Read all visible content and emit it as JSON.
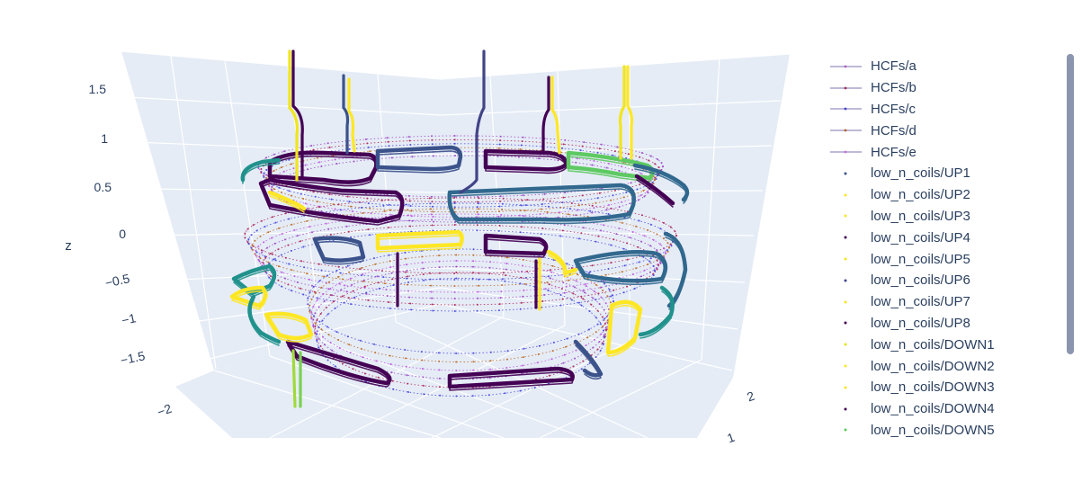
{
  "chart_data": {
    "type": "scatter3d",
    "axes": {
      "z": {
        "title": "z",
        "ticks": [
          1.5,
          1,
          0.5,
          0,
          -0.5,
          -1,
          -1.5
        ],
        "tick_labels": [
          "1.5",
          "1",
          "0.5",
          "0",
          "−0.5",
          "−1",
          "−1.5"
        ]
      },
      "x": {
        "tick_labels": [
          "−2"
        ]
      },
      "y": {
        "tick_labels": [
          "2",
          "1"
        ]
      }
    },
    "grid": true,
    "legend_placement": "right",
    "colors": {
      "scene_bg": "#e5ecf6",
      "grid": "#ffffff",
      "text": "#2a3f5f",
      "hcf_a": "#a050c8",
      "hcf_b": "#b03060",
      "hcf_c": "#5050e0",
      "hcf_d": "#c07030",
      "hcf_e": "#c060e0"
    },
    "series": [
      {
        "name": "HCFs/a",
        "mode": "lines+markers",
        "color": "#b060c0"
      },
      {
        "name": "HCFs/b",
        "mode": "lines+markers",
        "color": "#a03050"
      },
      {
        "name": "HCFs/c",
        "mode": "lines+markers",
        "color": "#4040d0"
      },
      {
        "name": "HCFs/d",
        "mode": "lines+markers",
        "color": "#b06020"
      },
      {
        "name": "HCFs/e",
        "mode": "lines+markers",
        "color": "#c070d0"
      },
      {
        "name": "low_n_coils/UP1",
        "mode": "markers",
        "color": "#3b528b"
      },
      {
        "name": "low_n_coils/UP2",
        "mode": "markers",
        "color": "#fde725"
      },
      {
        "name": "low_n_coils/UP3",
        "mode": "markers",
        "color": "#f2e626"
      },
      {
        "name": "low_n_coils/UP4",
        "mode": "markers",
        "color": "#440154"
      },
      {
        "name": "low_n_coils/UP5",
        "mode": "markers",
        "color": "#f4e61e"
      },
      {
        "name": "low_n_coils/UP6",
        "mode": "markers",
        "color": "#414487"
      },
      {
        "name": "low_n_coils/UP7",
        "mode": "markers",
        "color": "#f8e621"
      },
      {
        "name": "low_n_coils/UP8",
        "mode": "markers",
        "color": "#440154"
      },
      {
        "name": "low_n_coils/DOWN1",
        "mode": "markers",
        "color": "#e5e419"
      },
      {
        "name": "low_n_coils/DOWN2",
        "mode": "markers",
        "color": "#fde725"
      },
      {
        "name": "low_n_coils/DOWN3",
        "mode": "markers",
        "color": "#f6e620"
      },
      {
        "name": "low_n_coils/DOWN4",
        "mode": "markers",
        "color": "#440154"
      },
      {
        "name": "low_n_coils/DOWN5",
        "mode": "markers",
        "color": "#5ec962"
      }
    ]
  }
}
